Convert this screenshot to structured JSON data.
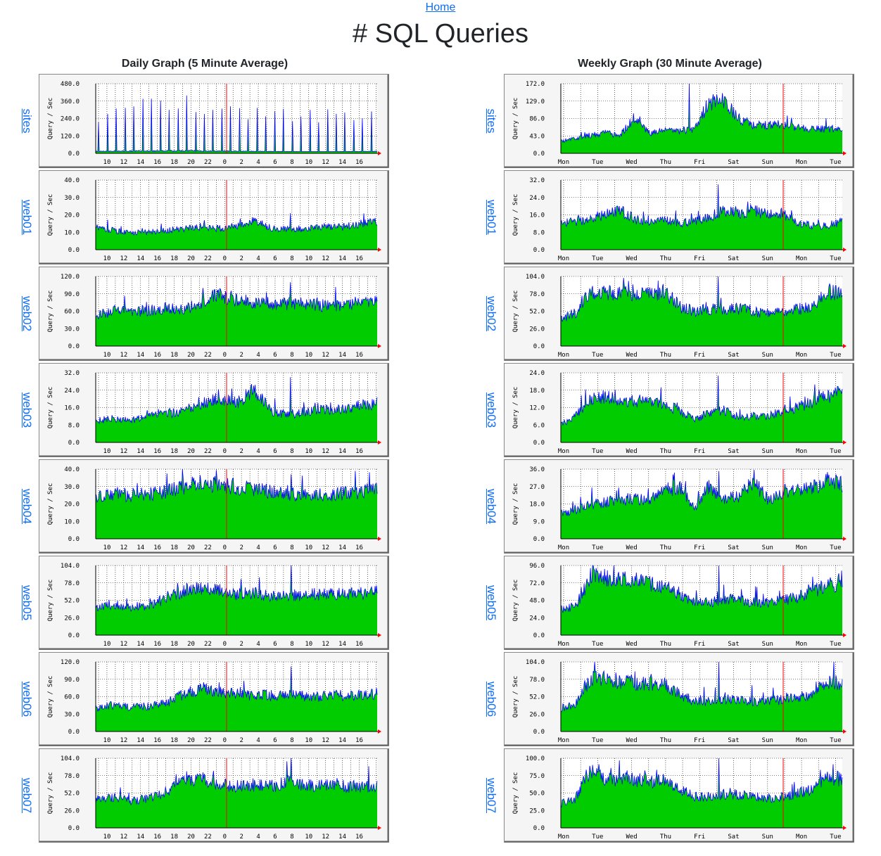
{
  "nav": {
    "home_label": "Home"
  },
  "page": {
    "title": "# SQL Queries"
  },
  "columns": {
    "daily_title": "Daily Graph (5 Minute Average)",
    "weekly_title": "Weekly Graph (30 Minute Average)"
  },
  "colors": {
    "fill": "#00cc00",
    "line": "#0000ff",
    "grid": "#000000",
    "now_marker": "#ff0000",
    "plot_bg": "#f5f5f5",
    "frame_bg": "#f5f5f5"
  },
  "chart_data": [
    {
      "panel": "daily",
      "host": "sites",
      "type": "area",
      "ylabel": "Query / Sec",
      "yticks": [
        "0.0",
        "120.0",
        "240.0",
        "360.0",
        "480.0"
      ],
      "ylim": [
        0,
        480
      ],
      "xticks": [
        "10",
        "12",
        "14",
        "16",
        "18",
        "20",
        "22",
        "0",
        "2",
        "4",
        "6",
        "8",
        "10",
        "12",
        "14",
        "16"
      ],
      "baseline": [
        12,
        22
      ],
      "spikes": [
        280,
        330,
        410,
        380,
        360,
        390,
        420,
        380,
        330,
        410,
        400,
        360,
        340,
        380,
        360,
        350,
        340,
        300,
        330,
        290,
        300,
        310,
        290,
        280,
        300,
        270,
        310,
        290,
        300,
        280,
        290,
        300
      ]
    },
    {
      "panel": "daily",
      "host": "web01",
      "type": "area",
      "ylabel": "Query / Sec",
      "yticks": [
        "0.0",
        "10.0",
        "20.0",
        "30.0",
        "40.0"
      ],
      "ylim": [
        0,
        40
      ],
      "xticks": [
        "10",
        "12",
        "14",
        "16",
        "18",
        "20",
        "22",
        "0",
        "2",
        "4",
        "6",
        "8",
        "10",
        "12",
        "14",
        "16"
      ],
      "trend": [
        13,
        11,
        10,
        10,
        11,
        12,
        13,
        12,
        14,
        17,
        12,
        12,
        12,
        13,
        13,
        15,
        16
      ],
      "peak": 21
    },
    {
      "panel": "daily",
      "host": "web02",
      "type": "area",
      "ylabel": "Query / Sec",
      "yticks": [
        "0.0",
        "30.0",
        "60.0",
        "90.0",
        "120.0"
      ],
      "ylim": [
        0,
        120
      ],
      "xticks": [
        "10",
        "12",
        "14",
        "16",
        "18",
        "20",
        "22",
        "0",
        "2",
        "4",
        "6",
        "8",
        "10",
        "12",
        "14",
        "16"
      ],
      "trend": [
        50,
        62,
        58,
        62,
        66,
        62,
        75,
        88,
        80,
        75,
        74,
        73,
        72,
        70,
        72,
        75,
        80
      ],
      "peak": 110
    },
    {
      "panel": "daily",
      "host": "web03",
      "type": "area",
      "ylabel": "Query / Sec",
      "yticks": [
        "0.0",
        "8.0",
        "16.0",
        "24.0",
        "32.0"
      ],
      "ylim": [
        0,
        32
      ],
      "xticks": [
        "10",
        "12",
        "14",
        "16",
        "18",
        "20",
        "22",
        "0",
        "2",
        "4",
        "6",
        "8",
        "10",
        "12",
        "14",
        "16"
      ],
      "trend": [
        10,
        11,
        10,
        12,
        13,
        14,
        18,
        20,
        18,
        24,
        14,
        13,
        14,
        15,
        15,
        17,
        18
      ],
      "peak": 30
    },
    {
      "panel": "daily",
      "host": "web04",
      "type": "area",
      "ylabel": "Query / Sec",
      "yticks": [
        "0.0",
        "10.0",
        "20.0",
        "30.0",
        "40.0"
      ],
      "ylim": [
        0,
        40
      ],
      "xticks": [
        "10",
        "12",
        "14",
        "16",
        "18",
        "20",
        "22",
        "0",
        "2",
        "4",
        "6",
        "8",
        "10",
        "12",
        "14",
        "16"
      ],
      "trend": [
        24,
        26,
        25,
        26,
        27,
        30,
        32,
        31,
        30,
        28,
        27,
        26,
        25,
        25,
        26,
        27,
        28
      ],
      "peak": 37
    },
    {
      "panel": "daily",
      "host": "web05",
      "type": "area",
      "ylabel": "Query / Sec",
      "yticks": [
        "0.0",
        "26.0",
        "52.0",
        "78.0",
        "104.0"
      ],
      "ylim": [
        0,
        104
      ],
      "xticks": [
        "10",
        "12",
        "14",
        "16",
        "18",
        "20",
        "22",
        "0",
        "2",
        "4",
        "6",
        "8",
        "10",
        "12",
        "14",
        "16"
      ],
      "trend": [
        40,
        45,
        42,
        44,
        55,
        65,
        70,
        68,
        62,
        62,
        60,
        60,
        60,
        62,
        62,
        62,
        64
      ],
      "peak": 104
    },
    {
      "panel": "daily",
      "host": "web06",
      "type": "area",
      "ylabel": "Query / Sec",
      "yticks": [
        "0.0",
        "30.0",
        "60.0",
        "90.0",
        "120.0"
      ],
      "ylim": [
        0,
        120
      ],
      "xticks": [
        "10",
        "12",
        "14",
        "16",
        "18",
        "20",
        "22",
        "0",
        "2",
        "4",
        "6",
        "8",
        "10",
        "12",
        "14",
        "16"
      ],
      "trend": [
        40,
        45,
        42,
        44,
        48,
        65,
        75,
        68,
        65,
        62,
        62,
        62,
        60,
        62,
        62,
        62,
        65
      ],
      "peak": 112
    },
    {
      "panel": "daily",
      "host": "web07",
      "type": "area",
      "ylabel": "Query / Sec",
      "yticks": [
        "0.0",
        "26.0",
        "52.0",
        "78.0",
        "104.0"
      ],
      "ylim": [
        0,
        104
      ],
      "xticks": [
        "10",
        "12",
        "14",
        "16",
        "18",
        "20",
        "22",
        "0",
        "2",
        "4",
        "6",
        "8",
        "10",
        "12",
        "14",
        "16"
      ],
      "trend": [
        42,
        45,
        40,
        45,
        52,
        72,
        75,
        65,
        62,
        64,
        62,
        68,
        62,
        64,
        62,
        62,
        64
      ],
      "peak": 104
    },
    {
      "panel": "weekly",
      "host": "sites",
      "type": "area",
      "ylabel": "Query / Sec",
      "yticks": [
        "0.0",
        "43.0",
        "86.0",
        "129.0",
        "172.0"
      ],
      "ylim": [
        0,
        172
      ],
      "xticks": [
        "Mon",
        "Tue",
        "Wed",
        "Thu",
        "Fri",
        "Sat",
        "Sun",
        "Mon",
        "Tue"
      ],
      "trend": [
        30,
        35,
        45,
        50,
        45,
        90,
        50,
        55,
        55,
        60,
        125,
        130,
        85,
        70,
        70,
        72,
        65,
        60,
        60,
        65
      ],
      "peak": 172
    },
    {
      "panel": "weekly",
      "host": "web01",
      "type": "area",
      "ylabel": "Query / Sec",
      "yticks": [
        "0.0",
        "8.0",
        "16.0",
        "24.0",
        "32.0"
      ],
      "ylim": [
        0,
        32
      ],
      "xticks": [
        "Mon",
        "Tue",
        "Wed",
        "Thu",
        "Fri",
        "Sat",
        "Sun",
        "Mon",
        "Tue"
      ],
      "trend": [
        12,
        13,
        14,
        16,
        18,
        14,
        12,
        14,
        12,
        13,
        15,
        18,
        17,
        18,
        16,
        17,
        12,
        11,
        11,
        13
      ],
      "peak": 30
    },
    {
      "panel": "weekly",
      "host": "web02",
      "type": "area",
      "ylabel": "Query / Sec",
      "yticks": [
        "0.0",
        "26.0",
        "52.0",
        "78.0",
        "104.0"
      ],
      "ylim": [
        0,
        104
      ],
      "xticks": [
        "Mon",
        "Tue",
        "Wed",
        "Thu",
        "Fri",
        "Sat",
        "Sun",
        "Mon",
        "Tue"
      ],
      "trend": [
        40,
        50,
        80,
        82,
        80,
        80,
        78,
        82,
        60,
        52,
        55,
        55,
        56,
        52,
        48,
        52,
        55,
        58,
        80,
        82
      ],
      "peak": 104
    },
    {
      "panel": "weekly",
      "host": "web03",
      "type": "area",
      "ylabel": "Query / Sec",
      "yticks": [
        "0.0",
        "6.0",
        "12.0",
        "18.0",
        "24.0"
      ],
      "ylim": [
        0,
        24
      ],
      "xticks": [
        "Mon",
        "Tue",
        "Wed",
        "Thu",
        "Fri",
        "Sat",
        "Sun",
        "Mon",
        "Tue"
      ],
      "trend": [
        6,
        9,
        15,
        16,
        15,
        14,
        15,
        13,
        11,
        8,
        10,
        11,
        9,
        9,
        9,
        11,
        12,
        14,
        16,
        17
      ],
      "peak": 23
    },
    {
      "panel": "weekly",
      "host": "web04",
      "type": "area",
      "ylabel": "Query / Sec",
      "yticks": [
        "0.0",
        "9.0",
        "18.0",
        "27.0",
        "36.0"
      ],
      "ylim": [
        0,
        36
      ],
      "xticks": [
        "Mon",
        "Tue",
        "Wed",
        "Thu",
        "Fri",
        "Sat",
        "Sun",
        "Mon",
        "Tue"
      ],
      "trend": [
        13,
        15,
        18,
        19,
        20,
        21,
        20,
        25,
        27,
        15,
        28,
        20,
        22,
        30,
        20,
        24,
        26,
        27,
        30,
        28
      ],
      "peak": 35
    },
    {
      "panel": "weekly",
      "host": "web05",
      "type": "area",
      "ylabel": "Query / Sec",
      "yticks": [
        "0.0",
        "24.0",
        "48.0",
        "72.0",
        "96.0"
      ],
      "ylim": [
        0,
        96
      ],
      "xticks": [
        "Mon",
        "Tue",
        "Wed",
        "Thu",
        "Fri",
        "Sat",
        "Sun",
        "Mon",
        "Tue"
      ],
      "trend": [
        35,
        40,
        80,
        80,
        78,
        75,
        70,
        68,
        55,
        45,
        45,
        50,
        48,
        45,
        45,
        48,
        52,
        60,
        70,
        70
      ],
      "peak": 96
    },
    {
      "panel": "weekly",
      "host": "web06",
      "type": "area",
      "ylabel": "Query / Sec",
      "yticks": [
        "0.0",
        "26.0",
        "52.0",
        "78.0",
        "104.0"
      ],
      "ylim": [
        0,
        104
      ],
      "xticks": [
        "Mon",
        "Tue",
        "Wed",
        "Thu",
        "Fri",
        "Sat",
        "Sun",
        "Mon",
        "Tue"
      ],
      "trend": [
        35,
        40,
        80,
        78,
        75,
        72,
        70,
        72,
        55,
        45,
        45,
        48,
        48,
        45,
        45,
        48,
        52,
        55,
        75,
        72
      ],
      "peak": 104
    },
    {
      "panel": "weekly",
      "host": "web07",
      "type": "area",
      "ylabel": "Query / Sec",
      "yticks": [
        "0.0",
        "25.0",
        "50.0",
        "75.0",
        "100.0"
      ],
      "ylim": [
        0,
        100
      ],
      "xticks": [
        "Mon",
        "Tue",
        "Wed",
        "Thu",
        "Fri",
        "Sat",
        "Sun",
        "Mon",
        "Tue"
      ],
      "trend": [
        35,
        42,
        85,
        70,
        68,
        70,
        68,
        68,
        55,
        45,
        45,
        48,
        48,
        45,
        42,
        45,
        50,
        55,
        72,
        70
      ],
      "peak": 100
    }
  ]
}
